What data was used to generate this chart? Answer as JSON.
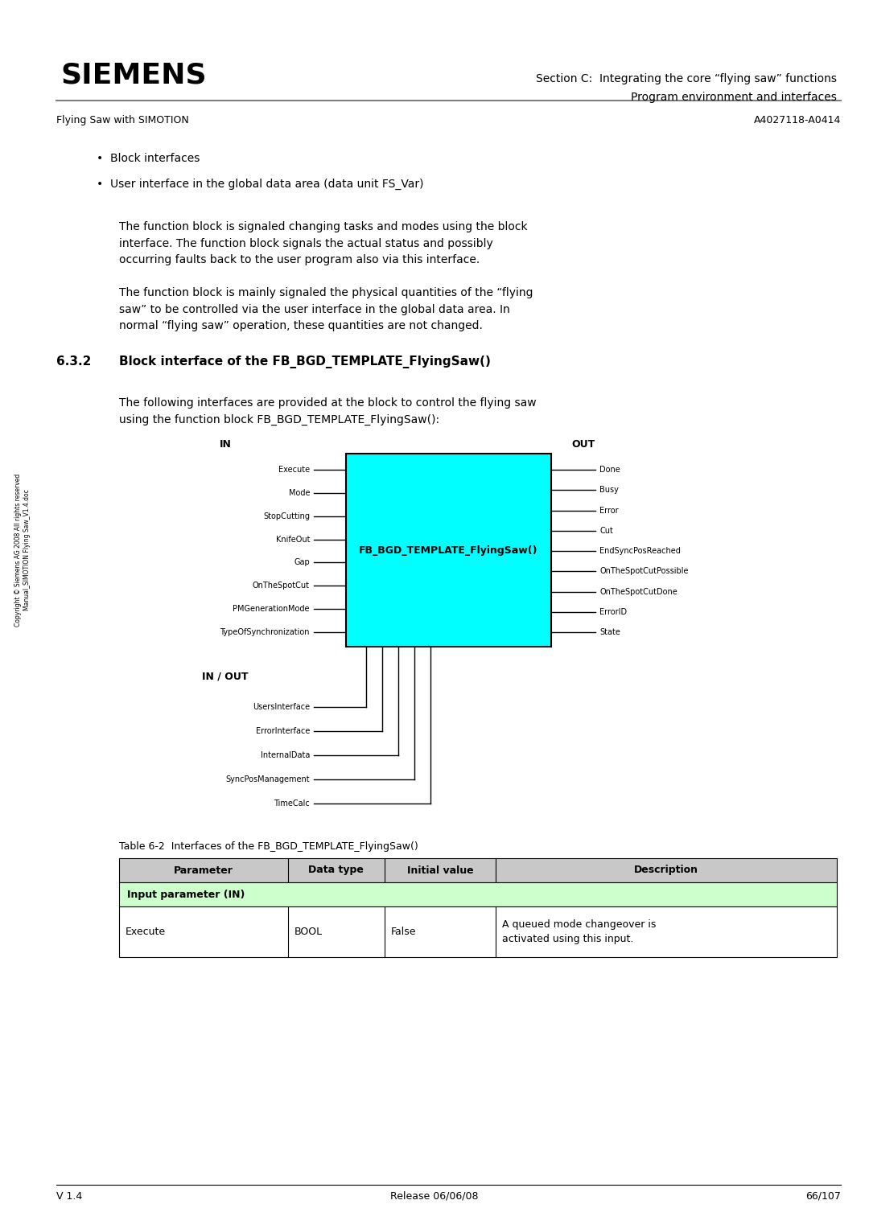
{
  "page_width": 10.8,
  "page_height": 15.28,
  "bg_color": "#ffffff",
  "header": {
    "siemens_text": "SIEMENS",
    "section_line1": "Section C:  Integrating the core “flying saw” functions",
    "section_line2": "Program environment and interfaces",
    "left_sub": "Flying Saw with SIMOTION",
    "right_sub": "A4027118-A0414"
  },
  "bullets": [
    "Block interfaces",
    "User interface in the global data area (data unit FS_Var)"
  ],
  "para1": "The function block is signaled changing tasks and modes using the block\ninterface. The function block signals the actual status and possibly\noccurring faults back to the user program also via this interface.",
  "para2": "The function block is mainly signaled the physical quantities of the “flying\nsaw” to be controlled via the user interface in the global data area. In\nnormal “flying saw” operation, these quantities are not changed.",
  "section_num": "6.3.2",
  "section_title": "Block interface of the FB_BGD_TEMPLATE_FlyingSaw()",
  "desc_para": "The following interfaces are provided at the block to control the flying saw\nusing the function block FB_BGD_TEMPLATE_FlyingSaw():",
  "block_label": "FB_BGD_TEMPLATE_FlyingSaw()",
  "in_label": "IN",
  "out_label": "OUT",
  "in_out_label": "IN / OUT",
  "in_signals": [
    "Execute",
    "Mode",
    "StopCutting",
    "KnifeOut",
    "Gap",
    "OnTheSpotCut",
    "PMGenerationMode",
    "TypeOfSynchronization"
  ],
  "out_signals": [
    "Done",
    "Busy",
    "Error",
    "Cut",
    "EndSyncPosReached",
    "OnTheSpotCutPossible",
    "OnTheSpotCutDone",
    "ErrorID",
    "State"
  ],
  "inout_signals": [
    "UsersInterface",
    "ErrorInterface",
    "InternalData",
    "SyncPosManagement",
    "TimeCalc"
  ],
  "table_caption": "Table 6-2  Interfaces of the FB_BGD_TEMPLATE_FlyingSaw()",
  "table_headers": [
    "Parameter",
    "Data type",
    "Initial value",
    "Description"
  ],
  "table_section_row": "Input parameter (IN)",
  "table_data": [
    [
      "Execute",
      "BOOL",
      "False",
      "A queued mode changeover is\nactivated using this input."
    ]
  ],
  "table_header_bg": "#c8c8c8",
  "table_section_bg": "#ccffcc",
  "block_fill": "#00ffff",
  "block_border": "#000000",
  "copyright_text": "Copyright © Siemens AG 2008 All rights reserved\nManual_SIMOTION Flying Saw_V1.4.doc",
  "footer_left": "V 1.4",
  "footer_center": "Release 06/06/08",
  "footer_right": "66/107"
}
